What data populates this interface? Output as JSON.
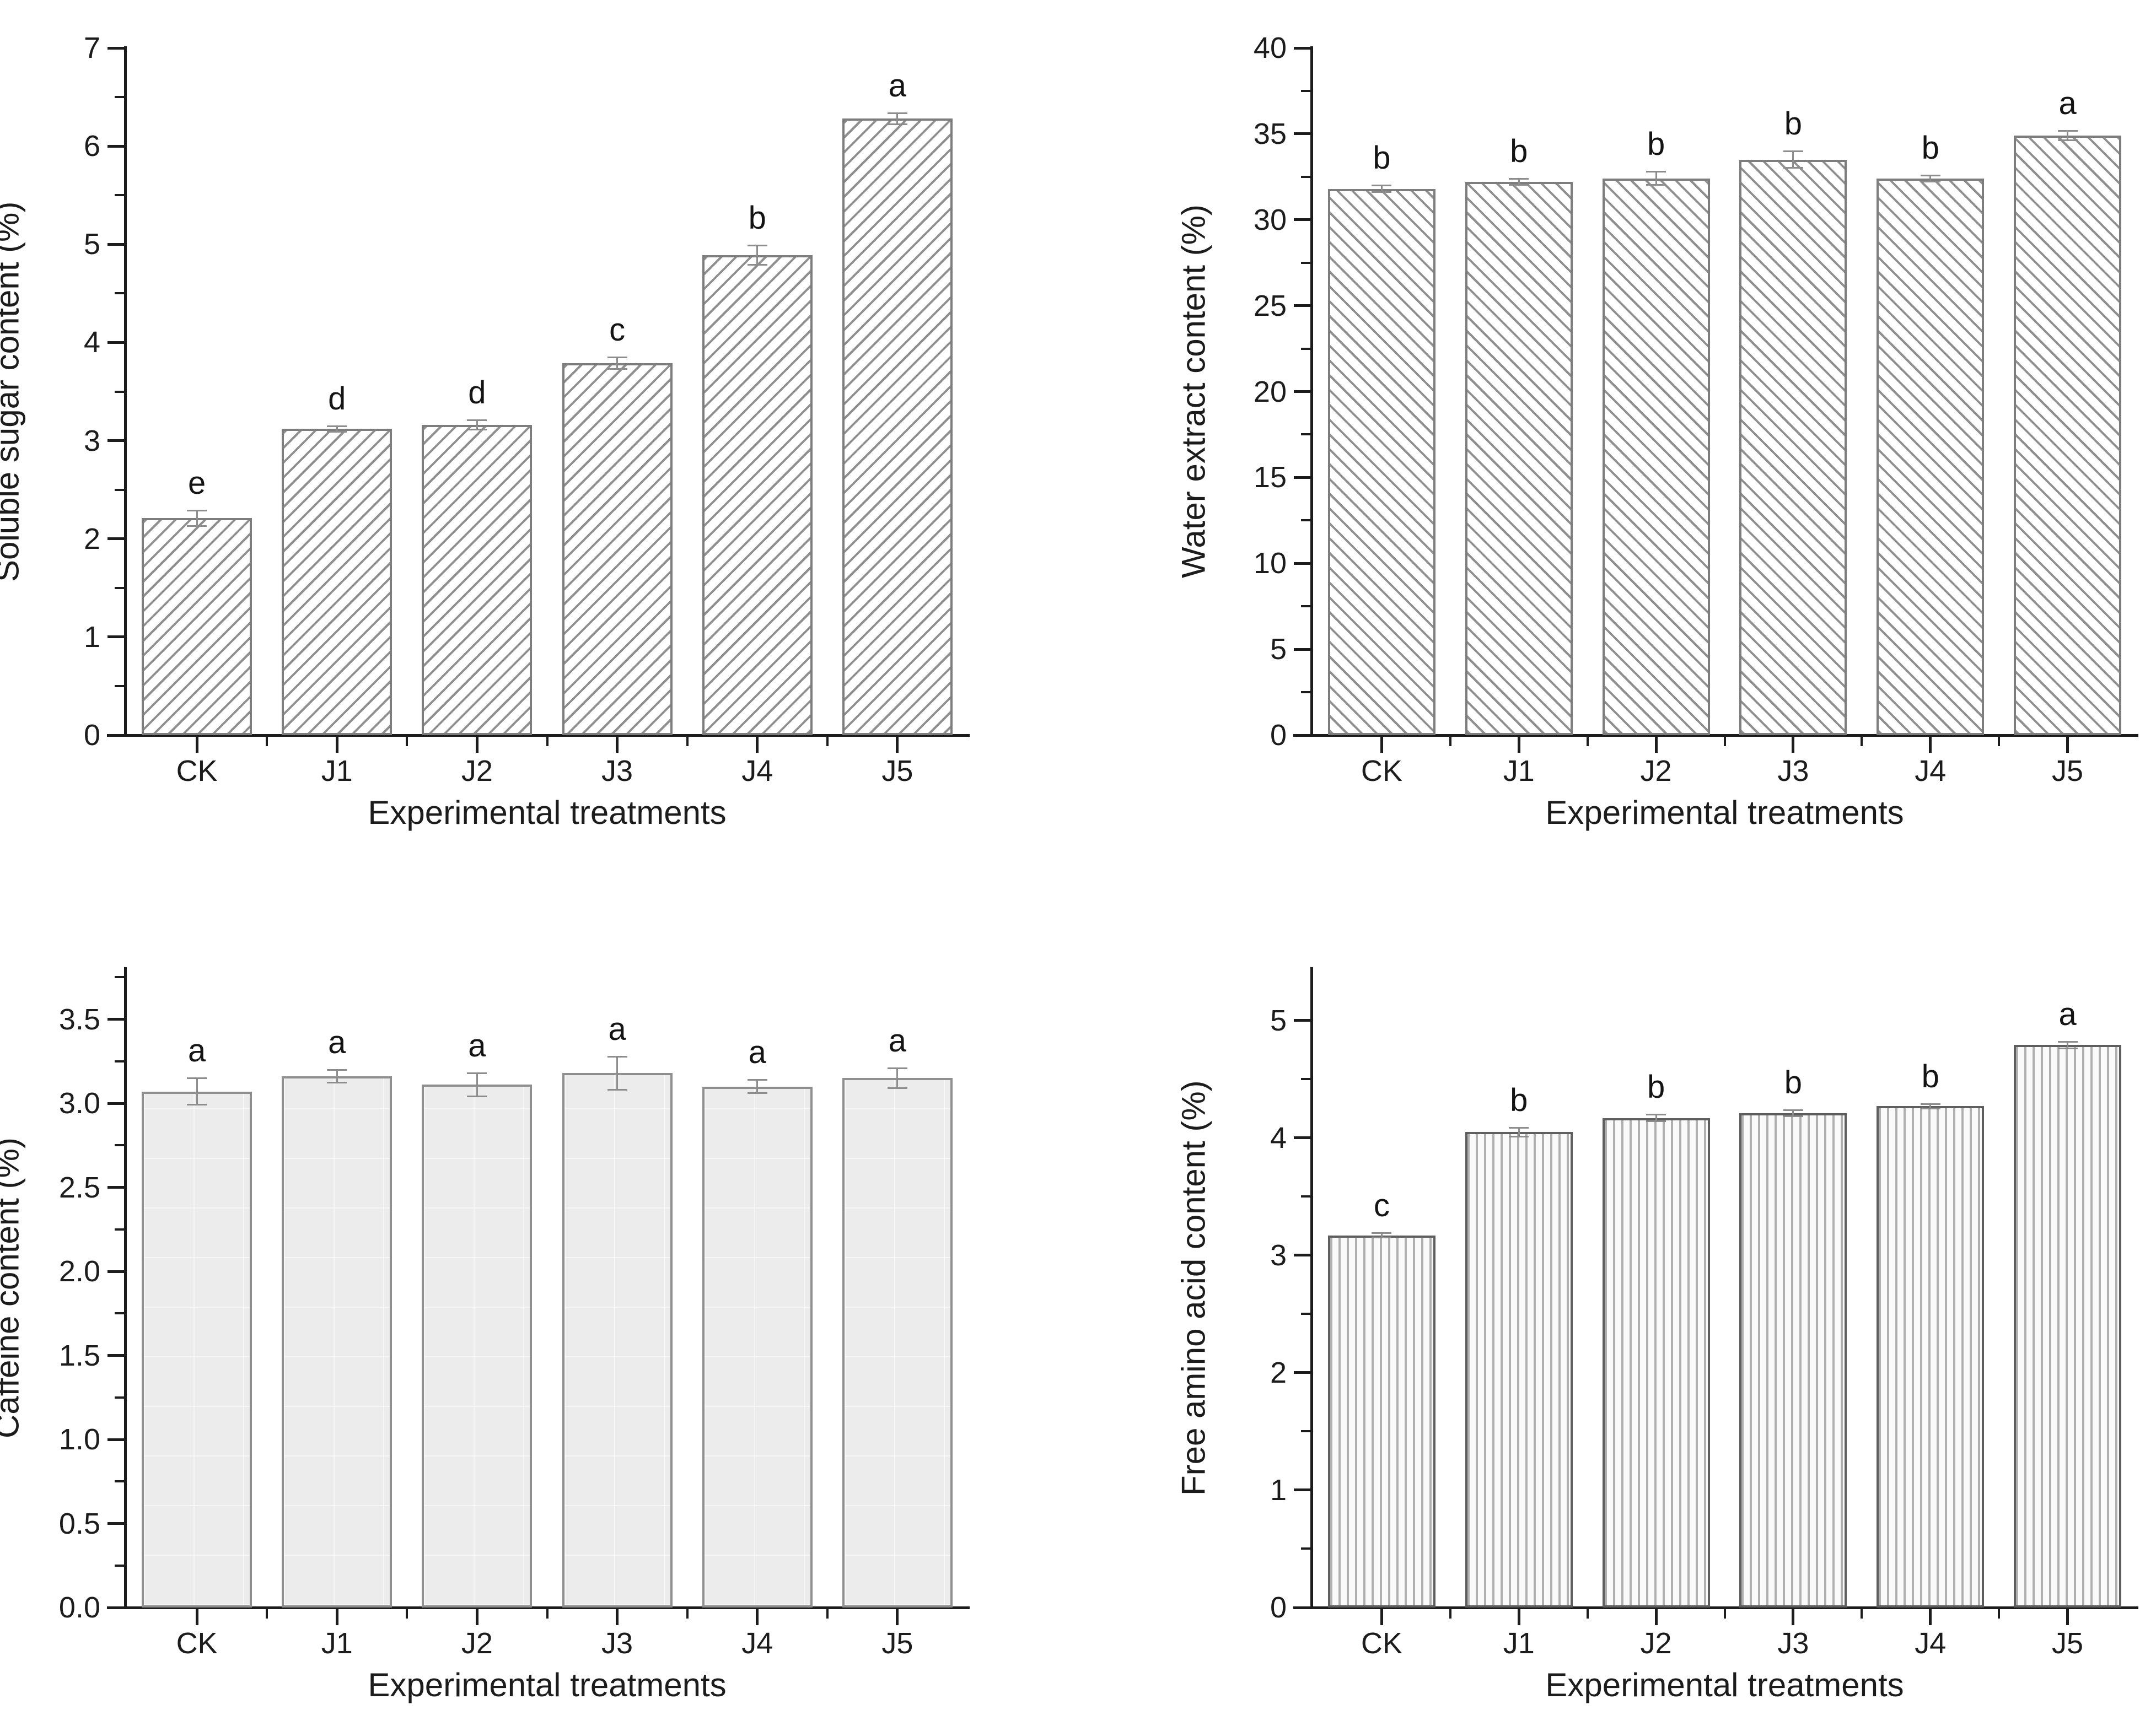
{
  "figure": {
    "background": "#ffffff",
    "axis_color": "#1c1c1c",
    "bar_edge_color": "#7d7d7d",
    "hatch_line_color": "#8f8f8f",
    "error_bar_color": "#8c8c8c"
  },
  "chart_data": [
    {
      "type": "bar",
      "panel": "top-left",
      "title": "",
      "ylabel": "Soluble sugar content (%)",
      "xlabel": "Experimental treatments",
      "categories": [
        "CK",
        "J1",
        "J2",
        "J3",
        "J4",
        "J5"
      ],
      "values": [
        2.21,
        3.12,
        3.16,
        3.79,
        4.89,
        6.28
      ],
      "errors": [
        0.08,
        0.03,
        0.05,
        0.06,
        0.1,
        0.06
      ],
      "sig_letters": [
        "e",
        "d",
        "d",
        "c",
        "b",
        "a"
      ],
      "ylim": [
        0,
        7
      ],
      "ytick_step": 1,
      "minor_tick_step": 0.5,
      "ytick_labels": [
        "0",
        "1",
        "2",
        "3",
        "4",
        "5",
        "6",
        "7"
      ],
      "bar_hatch": "diagonal-up",
      "grid": false,
      "legend": "none"
    },
    {
      "type": "bar",
      "panel": "top-right",
      "title": "",
      "ylabel": "Water extract content (%)",
      "xlabel": "Experimental treatments",
      "categories": [
        "CK",
        "J1",
        "J2",
        "J3",
        "J4",
        "J5"
      ],
      "values": [
        31.8,
        32.2,
        32.4,
        33.5,
        32.4,
        34.9
      ],
      "errors": [
        0.2,
        0.2,
        0.4,
        0.5,
        0.2,
        0.3
      ],
      "sig_letters": [
        "b",
        "b",
        "b",
        "b",
        "b",
        "a"
      ],
      "ylim": [
        0,
        40
      ],
      "ytick_step": 5,
      "minor_tick_step": 2.5,
      "ytick_labels": [
        "0",
        "5",
        "10",
        "15",
        "20",
        "25",
        "30",
        "35",
        "40"
      ],
      "bar_hatch": "diagonal-down",
      "grid": false,
      "legend": "none"
    },
    {
      "type": "bar",
      "panel": "bottom-left",
      "title": "",
      "ylabel": "Caffeine content (%)",
      "xlabel": "Experimental treatments",
      "categories": [
        "CK",
        "J1",
        "J2",
        "J3",
        "J4",
        "J5"
      ],
      "values": [
        3.07,
        3.16,
        3.11,
        3.18,
        3.1,
        3.15
      ],
      "errors": [
        0.08,
        0.04,
        0.07,
        0.1,
        0.04,
        0.06
      ],
      "sig_letters": [
        "a",
        "a",
        "a",
        "a",
        "a",
        "a"
      ],
      "ylim": [
        0,
        3.8
      ],
      "ytick_step": 0.5,
      "minor_tick_step": 0.25,
      "ytick_labels": [
        "0.0",
        "0.5",
        "1.0",
        "1.5",
        "2.0",
        "2.5",
        "3.0",
        "3.5"
      ],
      "bar_hatch": "none",
      "grid": false,
      "legend": "none"
    },
    {
      "type": "bar",
      "panel": "bottom-right",
      "title": "",
      "ylabel": "Free amino acid content (%)",
      "xlabel": "Experimental treatments",
      "categories": [
        "CK",
        "J1",
        "J2",
        "J3",
        "J4",
        "J5"
      ],
      "values": [
        3.17,
        4.05,
        4.17,
        4.21,
        4.27,
        4.79
      ],
      "errors": [
        0.02,
        0.04,
        0.03,
        0.03,
        0.02,
        0.03
      ],
      "sig_letters": [
        "c",
        "b",
        "b",
        "b",
        "b",
        "a"
      ],
      "ylim": [
        0,
        5.44
      ],
      "ytick_step": 1,
      "minor_tick_step": 0.5,
      "ytick_labels": [
        "0",
        "1",
        "2",
        "3",
        "4",
        "5"
      ],
      "bar_hatch": "vertical",
      "grid": false,
      "legend": "none"
    }
  ]
}
